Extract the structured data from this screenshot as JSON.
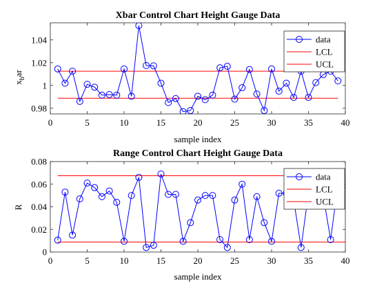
{
  "colors": {
    "data": "#0000ff",
    "limits": "#ff0000",
    "axis": "#262626"
  },
  "chart_data": [
    {
      "type": "line",
      "title": "Xbar Control Chart Height Gauge Data",
      "xlabel": "sample index",
      "ylabel_main": "x",
      "ylabel_sub": "b",
      "ylabel_tail": "ar",
      "xlim": [
        0,
        40
      ],
      "ylim": [
        0.975,
        1.055
      ],
      "xticks": [
        0,
        5,
        10,
        15,
        20,
        25,
        30,
        35,
        40
      ],
      "xtick_labels": [
        "0",
        "5",
        "10",
        "15",
        "20",
        "25",
        "30",
        "35",
        "40"
      ],
      "yticks": [
        0.98,
        1,
        1.02,
        1.04
      ],
      "ytick_labels": [
        "0.98",
        "1",
        "1.02",
        "1.04"
      ],
      "legend": [
        "data",
        "LCL",
        "UCL"
      ],
      "legend_position": "top-right",
      "lcl": 0.9888,
      "ucl": 1.0125,
      "x": [
        1,
        2,
        3,
        4,
        5,
        6,
        7,
        8,
        9,
        10,
        11,
        12,
        13,
        14,
        15,
        16,
        17,
        18,
        19,
        20,
        21,
        22,
        23,
        24,
        25,
        26,
        27,
        28,
        29,
        30,
        31,
        32,
        33,
        34,
        35,
        36,
        37,
        38,
        39
      ],
      "values": [
        1.0145,
        1.002,
        1.0125,
        0.986,
        1.001,
        0.9985,
        0.9915,
        0.992,
        0.9915,
        1.0145,
        0.9905,
        1.0525,
        1.0175,
        1.0172,
        1.002,
        0.985,
        0.9885,
        0.977,
        0.978,
        0.9905,
        0.9875,
        0.9915,
        1.0155,
        1.0168,
        0.988,
        0.998,
        1.014,
        0.9925,
        0.978,
        1.0145,
        0.995,
        1.002,
        0.9895,
        1.0125,
        0.9895,
        1.0025,
        1.0095,
        1.0125,
        1.004
      ]
    },
    {
      "type": "line",
      "title": "Range Control Chart Height Gauge Data",
      "xlabel": "sample index",
      "ylabel": "R",
      "xlim": [
        0,
        40
      ],
      "ylim": [
        0,
        0.08
      ],
      "xticks": [
        0,
        5,
        10,
        15,
        20,
        25,
        30,
        35,
        40
      ],
      "xtick_labels": [
        "0",
        "5",
        "10",
        "15",
        "20",
        "25",
        "30",
        "35",
        "40"
      ],
      "yticks": [
        0,
        0.02,
        0.04,
        0.06,
        0.08
      ],
      "ytick_labels": [
        "0",
        "0.02",
        "0.04",
        "0.06",
        "0.08"
      ],
      "legend": [
        "data",
        "LCL",
        "UCL"
      ],
      "legend_position": "top-right",
      "lcl": 0.0088,
      "ucl": 0.0675,
      "x": [
        1,
        2,
        3,
        4,
        5,
        6,
        7,
        8,
        9,
        10,
        11,
        12,
        13,
        14,
        15,
        16,
        17,
        18,
        19,
        20,
        21,
        22,
        23,
        24,
        25,
        26,
        27,
        28,
        29,
        30,
        31,
        32,
        33,
        34,
        35,
        36,
        37,
        38,
        39,
        40
      ],
      "values": [
        0.0105,
        0.053,
        0.015,
        0.047,
        0.061,
        0.057,
        0.049,
        0.054,
        0.044,
        0.0095,
        0.05,
        0.066,
        0.004,
        0.006,
        0.069,
        0.051,
        0.051,
        0.0095,
        0.026,
        0.046,
        0.05,
        0.05,
        0.011,
        0.004,
        0.046,
        0.06,
        0.011,
        0.049,
        0.026,
        0.0095,
        0.052,
        0.052,
        0.046,
        0.004,
        0.052,
        0.05,
        0.05,
        0.011,
        0.0595,
        0.0595
      ]
    }
  ]
}
